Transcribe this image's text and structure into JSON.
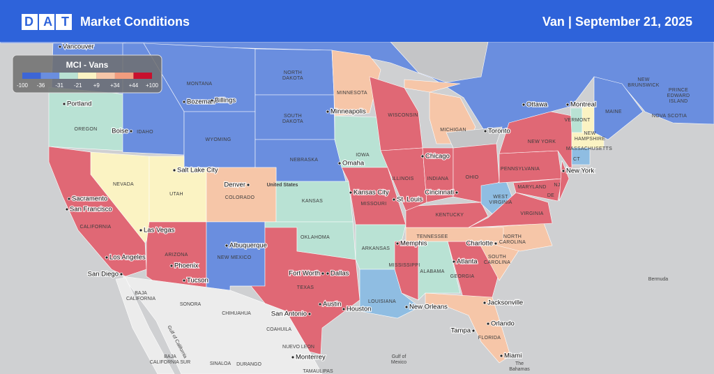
{
  "header": {
    "logo": "DAT",
    "title": "Market Conditions",
    "subtitle": "Van | September 21, 2025"
  },
  "legend": {
    "title": "MCI - Vans",
    "labels": [
      "-100",
      "-36",
      "-31",
      "-21",
      "+9",
      "+34",
      "+44",
      "+100"
    ]
  },
  "states": [
    "MONTANA",
    [
      "NORTH",
      "DAKOTA"
    ],
    "MINNESOTA",
    "OREGON",
    "IDAHO",
    [
      "SOUTH",
      "DAKOTA"
    ],
    "WYOMING",
    "WISCONSIN",
    "MICHIGAN",
    "IOWA",
    "NEBRASKA",
    "NEVADA",
    "UTAH",
    "COLORADO",
    "KANSAS",
    "ILLINOIS",
    "INDIANA",
    "OHIO",
    "CALIFORNIA",
    "MISSOURI",
    "OKLAHOMA",
    "ARIZONA",
    "NEW MEXICO",
    "ARKANSAS",
    "TENNESSEE",
    "KENTUCKY",
    [
      "WEST",
      "VIRGINIA"
    ],
    "VIRGINIA",
    [
      "NORTH",
      "CAROLINA"
    ],
    [
      "SOUTH",
      "CAROLINA"
    ],
    "MISSISSIPPI",
    "ALABAMA",
    "GEORGIA",
    "LOUISIANA",
    "TEXAS",
    "FLORIDA",
    "NEW YORK",
    "PENNSYLVANIA",
    "MARYLAND",
    "NJ",
    "DE",
    "VERMONT",
    [
      "NEW",
      "HAMPSHIRE"
    ],
    "MASSACHUSETTS",
    "CT",
    "MAINE",
    [
      "NEW",
      "BRUNSWICK"
    ],
    [
      "PRINCE",
      "EDWARD",
      "ISLAND"
    ],
    "NOVA SCOTIA"
  ],
  "places": [
    [
      "BAJA",
      "CALIFORNIA"
    ],
    "SONORA",
    "CHIHUAHUA",
    "COAHUILA",
    "NUEVO LEON",
    [
      "BAJA",
      "CALIFORNIA SUR"
    ],
    "SINALOA",
    "DURANGO",
    "TAMAULIPAS",
    [
      "Gulf of",
      "Mexico"
    ],
    "Gulf of California",
    "Bermuda",
    "United States",
    [
      "The",
      "Bahamas"
    ]
  ],
  "cities": [
    "Vancouver",
    "Portland",
    "Bozeman",
    "Billings",
    "Boise",
    "Minneapolis",
    "Salt Lake City",
    "Omaha",
    "Chicago",
    "Toronto",
    "Ottawa",
    "Montreal",
    "Sacramento",
    "San Francisco",
    "Denver",
    "Kansas City",
    "St. Louis",
    "Cincinnati",
    "Las Vegas",
    "Albuquerque",
    "Memphis",
    "Charlotte",
    "Los Angeles",
    "Phoenix",
    "Atlanta",
    "San Diego",
    "Tucson",
    "Fort Worth",
    "Dallas",
    "Austin",
    "Houston",
    "San Antonio",
    "New Orleans",
    "Jacksonville",
    "Orlando",
    "Tampa",
    "Miami",
    "Monterrey",
    "New York"
  ]
}
